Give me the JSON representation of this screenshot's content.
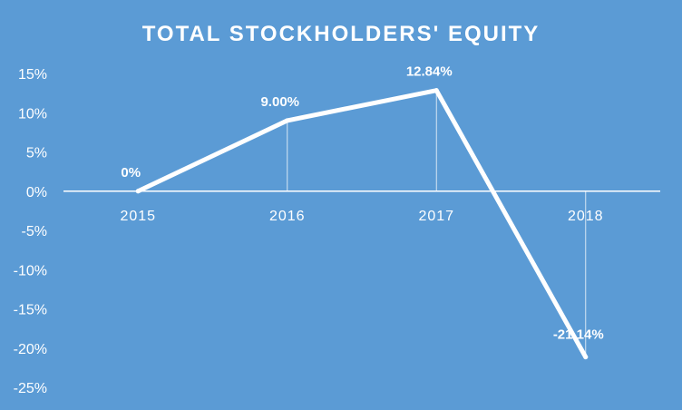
{
  "chart_data": {
    "type": "line",
    "title": "TOTAL STOCKHOLDERS' EQUITY",
    "xlabel": "",
    "ylabel": "",
    "categories": [
      "2015",
      "2016",
      "2017",
      "2018"
    ],
    "series": [
      {
        "values": [
          0,
          9.0,
          12.84,
          -21.14
        ],
        "data_labels": [
          "0%",
          "9.00%",
          "12.84%",
          "-21.14%"
        ]
      }
    ],
    "ylim": [
      -25,
      15
    ],
    "y_ticks": [
      15,
      10,
      5,
      0,
      -5,
      -10,
      -15,
      -20,
      -25
    ],
    "y_tick_labels": [
      "15%",
      "10%",
      "5%",
      "0%",
      "-5%",
      "-10%",
      "-15%",
      "-20%",
      "-25%"
    ],
    "grid": false,
    "drop_lines": true,
    "legend": "none",
    "colors": {
      "background": "#5B9BD5",
      "line": "#FFFFFF",
      "text": "#FFFFFF"
    }
  }
}
